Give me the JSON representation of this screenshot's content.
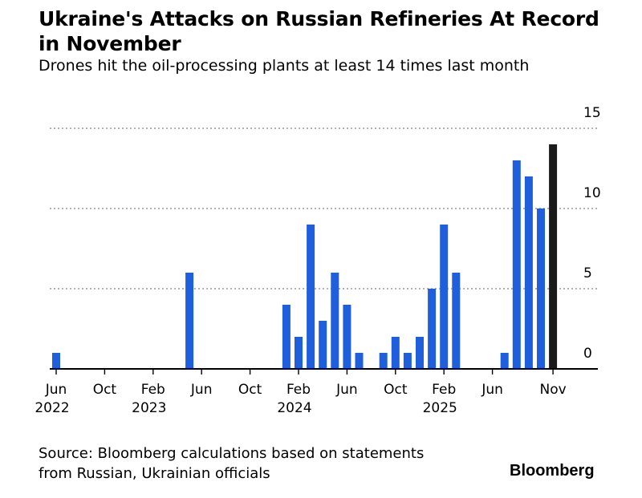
{
  "header": {
    "title": "Ukraine's Attacks on Russian Refineries At Record in November",
    "subtitle": "Drones hit the oil-processing plants at least 14 times last month"
  },
  "footer": {
    "source_line1": "Source: Bloomberg calculations based on statements",
    "source_line2": "from Russian, Ukrainian officials",
    "brand": "Bloomberg"
  },
  "colors": {
    "bar": "#1f5fdc",
    "highlight_bar": "#1a1a1a",
    "grid": "#999999",
    "axis": "#000000"
  },
  "chart_data": {
    "type": "bar",
    "title": "Ukraine's Attacks on Russian Refineries At Record in November",
    "subtitle": "Drones hit the oil-processing plants at least 14 times last month",
    "xlabel": "",
    "ylabel": "",
    "ylim": [
      0,
      15
    ],
    "y_ticks": [
      0,
      5,
      10,
      15
    ],
    "y_axis_side": "right",
    "grid": "horizontal dotted",
    "categories": [
      "Jun 2022",
      "Jul 2022",
      "Aug 2022",
      "Sep 2022",
      "Oct 2022",
      "Nov 2022",
      "Dec 2022",
      "Jan 2023",
      "Feb 2023",
      "Mar 2023",
      "Apr 2023",
      "May 2023",
      "Jun 2023",
      "Jul 2023",
      "Aug 2023",
      "Sep 2023",
      "Oct 2023",
      "Nov 2023",
      "Dec 2023",
      "Jan 2024",
      "Feb 2024",
      "Mar 2024",
      "Apr 2024",
      "May 2024",
      "Jun 2024",
      "Jul 2024",
      "Aug 2024",
      "Sep 2024",
      "Oct 2024",
      "Nov 2024",
      "Dec 2024",
      "Jan 2025",
      "Feb 2025",
      "Mar 2025",
      "Apr 2025",
      "May 2025",
      "Jun 2025",
      "Jul 2025",
      "Aug 2025",
      "Sep 2025",
      "Oct 2025",
      "Nov 2025"
    ],
    "values": [
      1,
      0,
      0,
      0,
      0,
      0,
      0,
      0,
      0,
      0,
      0,
      6,
      0,
      0,
      0,
      0,
      0,
      0,
      0,
      4,
      2,
      9,
      3,
      6,
      4,
      1,
      0,
      1,
      2,
      1,
      2,
      5,
      9,
      6,
      0,
      0,
      0,
      1,
      13,
      12,
      10,
      14
    ],
    "highlight": [
      "Nov 2025"
    ],
    "x_tick_labels": [
      {
        "month": "Jun",
        "year": "2022",
        "index": 0
      },
      {
        "month": "Oct",
        "year": "",
        "index": 4
      },
      {
        "month": "Feb",
        "year": "2023",
        "index": 8
      },
      {
        "month": "Jun",
        "year": "",
        "index": 12
      },
      {
        "month": "Oct",
        "year": "",
        "index": 16
      },
      {
        "month": "Feb",
        "year": "2024",
        "index": 20
      },
      {
        "month": "Jun",
        "year": "",
        "index": 24
      },
      {
        "month": "Oct",
        "year": "",
        "index": 28
      },
      {
        "month": "Feb",
        "year": "2025",
        "index": 32
      },
      {
        "month": "Jun",
        "year": "",
        "index": 36
      },
      {
        "month": "Nov",
        "year": "",
        "index": 41
      }
    ]
  }
}
